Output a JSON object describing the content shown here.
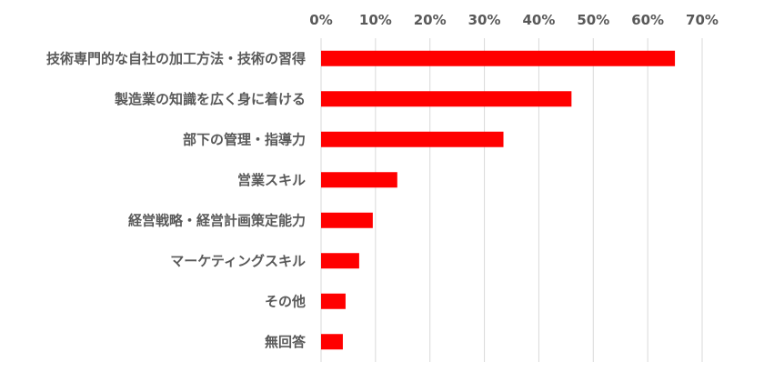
{
  "chart_data": {
    "type": "bar",
    "orientation": "horizontal",
    "title": "",
    "xlabel": "",
    "ylabel": "",
    "xlim": [
      0,
      70
    ],
    "x_ticks": [
      "0%",
      "10%",
      "20%",
      "30%",
      "40%",
      "50%",
      "60%",
      "70%"
    ],
    "tick_values": [
      0,
      10,
      20,
      30,
      40,
      50,
      60,
      70
    ],
    "value_unit": "%",
    "axis_position": "top",
    "grid": true,
    "categories": [
      "技術専門的な自社の加工方法・技術の習得",
      "製造業の知識を広く身に着ける",
      "部下の管理・指導力",
      "営業スキル",
      "経営戦略・経営計画策定能力",
      "マーケティングスキル",
      "その他",
      "無回答"
    ],
    "values": [
      65,
      46,
      33.5,
      14,
      9.5,
      7,
      4.5,
      4
    ],
    "colors": {
      "bar": "#ff0000",
      "grid": "#d9d9d9",
      "text": "#595959"
    }
  }
}
